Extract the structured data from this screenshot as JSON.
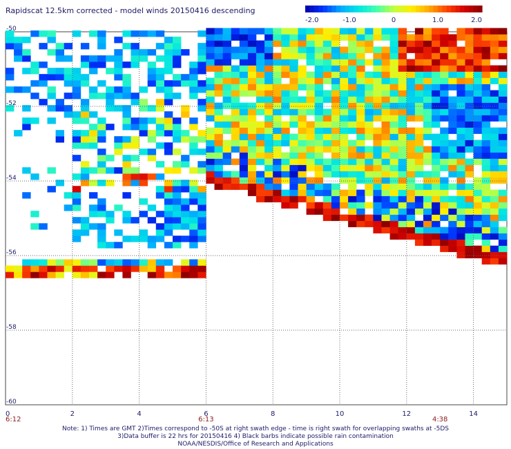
{
  "header": {
    "title": "Rapidscat 12.5km corrected - model winds 20150416 descending"
  },
  "colorbar": {
    "min": -2.0,
    "max": 2.0,
    "ticks": [
      "-2.0",
      "-1.0",
      "0",
      "1.0",
      "2.0"
    ]
  },
  "chart_data": {
    "type": "heatmap",
    "title": "Rapidscat 12.5km corrected - model winds 20150416 descending",
    "x_ticks": [
      "0",
      "2",
      "4",
      "6",
      "8",
      "10",
      "12",
      "14"
    ],
    "y_ticks": [
      "-50",
      "-52",
      "-54",
      "-56",
      "-58",
      "-60"
    ],
    "xlim": [
      0,
      15
    ],
    "ylim": [
      -60,
      -50
    ],
    "grid": true,
    "times": [
      {
        "x": 0,
        "label": "6:12"
      },
      {
        "x": 6,
        "label": "6:13"
      },
      {
        "x": 13,
        "label": "4:38"
      }
    ],
    "colors": {
      "ramp": [
        "#0000aa",
        "#0033ff",
        "#00aaff",
        "#00e5e5",
        "#40ffb0",
        "#c0ff40",
        "#ffee00",
        "#ffaa00",
        "#ff4400",
        "#d40000",
        "#8b0000"
      ],
      "time_label": "#8b1a1a",
      "grid": "#666666"
    },
    "description_regions": {
      "regionA": {
        "x": [
          0,
          6
        ],
        "y": [
          -55.8,
          -50
        ],
        "dominant": "negative"
      },
      "regionB": {
        "x": [
          6,
          15
        ],
        "y": [
          -56.5,
          -50
        ],
        "dominant": "mixed"
      },
      "strip": {
        "x": [
          0,
          6
        ],
        "y": [
          -56.6,
          -56
        ]
      }
    }
  },
  "notes": {
    "line1": "Note: 1) Times are GMT 2)Times correspond to -50S at right swath edge - time is right swath for overlapping swaths at -5DS",
    "line2": "3)Data buffer is 22 hrs for 20150416 4) Black barbs indicate possible rain contamination",
    "line3": "NOAA/NESDIS/Office of Research and Applications"
  }
}
